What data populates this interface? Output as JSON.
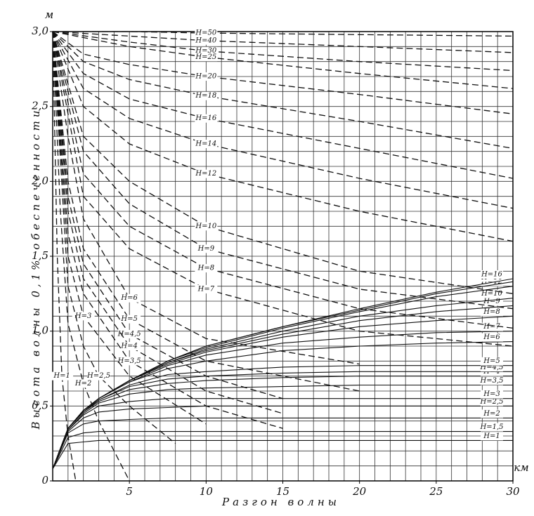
{
  "chart_data": {
    "type": "line",
    "x_label": "Разгон волны",
    "y_label": "Высота волны 0,1% обеспеченности",
    "x_unit": "км",
    "y_unit": "м",
    "xlim": [
      0,
      30
    ],
    "ylim": [
      0,
      3.0
    ],
    "xticks": [
      5,
      10,
      15,
      20,
      25,
      30
    ],
    "yticks": [
      {
        "value": 0,
        "label": "0"
      },
      {
        "value": 0.5,
        "label": "0,5"
      },
      {
        "value": 1.0,
        "label": "1,0"
      },
      {
        "value": 1.5,
        "label": "1,5"
      },
      {
        "value": 2.0,
        "label": "2,0"
      },
      {
        "value": 2.5,
        "label": "2,5"
      },
      {
        "value": 3.0,
        "label": "3,0"
      }
    ],
    "grid": true,
    "x_grid_step": 1,
    "y_grid_step": 0.1,
    "series": [
      {
        "name": "H=1",
        "color": "#111",
        "style": "solid",
        "x": [
          0,
          1,
          2,
          3,
          5,
          7.5,
          10,
          15,
          20,
          25,
          30
        ],
        "values": [
          0.08,
          0.25,
          0.26,
          0.27,
          0.27,
          0.27,
          0.27,
          0.27,
          0.27,
          0.27,
          0.27
        ]
      },
      {
        "name": "H=1,5",
        "color": "#111",
        "style": "solid",
        "x": [
          0,
          1,
          2,
          3,
          5,
          7.5,
          10,
          15,
          20,
          25,
          30
        ],
        "values": [
          0.08,
          0.29,
          0.32,
          0.33,
          0.33,
          0.33,
          0.33,
          0.33,
          0.33,
          0.33,
          0.33
        ]
      },
      {
        "name": "H=2",
        "color": "#111",
        "style": "solid",
        "x": [
          0,
          1,
          2,
          3,
          5,
          7.5,
          10,
          15,
          20,
          25,
          30
        ],
        "values": [
          0.08,
          0.32,
          0.38,
          0.4,
          0.41,
          0.42,
          0.42,
          0.42,
          0.42,
          0.42,
          0.42
        ]
      },
      {
        "name": "H=2,5",
        "color": "#111",
        "style": "solid",
        "x": [
          0,
          1,
          2,
          3,
          5,
          7.5,
          10,
          15,
          20,
          25,
          30
        ],
        "values": [
          0.08,
          0.33,
          0.42,
          0.46,
          0.48,
          0.49,
          0.5,
          0.5,
          0.5,
          0.5,
          0.5
        ]
      },
      {
        "name": "H=3",
        "color": "#111",
        "style": "solid",
        "x": [
          0,
          1,
          2,
          3,
          5,
          7.5,
          10,
          15,
          20,
          25,
          30
        ],
        "values": [
          0.08,
          0.34,
          0.44,
          0.5,
          0.53,
          0.55,
          0.55,
          0.55,
          0.55,
          0.55,
          0.55
        ]
      },
      {
        "name": "H=3,5",
        "color": "#111",
        "style": "solid",
        "x": [
          0,
          1,
          2,
          3,
          5,
          7.5,
          10,
          15,
          20,
          25,
          30
        ],
        "values": [
          0.08,
          0.34,
          0.45,
          0.52,
          0.58,
          0.61,
          0.62,
          0.63,
          0.64,
          0.64,
          0.64
        ]
      },
      {
        "name": "H=4",
        "color": "#111",
        "style": "solid",
        "x": [
          0,
          1,
          2,
          3,
          5,
          7.5,
          10,
          15,
          20,
          25,
          30
        ],
        "values": [
          0.08,
          0.35,
          0.46,
          0.53,
          0.61,
          0.65,
          0.67,
          0.69,
          0.7,
          0.7,
          0.7
        ]
      },
      {
        "name": "H=4,5",
        "color": "#111",
        "style": "solid",
        "x": [
          0,
          1,
          2,
          3,
          5,
          7.5,
          10,
          15,
          20,
          25,
          30
        ],
        "values": [
          0.08,
          0.35,
          0.46,
          0.54,
          0.63,
          0.68,
          0.7,
          0.72,
          0.73,
          0.73,
          0.73
        ]
      },
      {
        "name": "H=5",
        "color": "#111",
        "style": "solid",
        "x": [
          0,
          1,
          2,
          3,
          5,
          7.5,
          10,
          15,
          20,
          25,
          30
        ],
        "values": [
          0.08,
          0.35,
          0.47,
          0.54,
          0.64,
          0.71,
          0.73,
          0.76,
          0.77,
          0.77,
          0.77
        ]
      },
      {
        "name": "H=6",
        "color": "#111",
        "style": "solid",
        "x": [
          0,
          1,
          2,
          3,
          5,
          7.5,
          10,
          15,
          20,
          25,
          30
        ],
        "values": [
          0.08,
          0.35,
          0.47,
          0.55,
          0.66,
          0.75,
          0.8,
          0.87,
          0.9,
          0.92,
          0.93
        ]
      },
      {
        "name": "H=7",
        "color": "#111",
        "style": "solid",
        "x": [
          0,
          1,
          2,
          3,
          5,
          7.5,
          10,
          15,
          20,
          25,
          30
        ],
        "values": [
          0.08,
          0.35,
          0.47,
          0.55,
          0.66,
          0.77,
          0.84,
          0.92,
          0.96,
          0.99,
          1.0
        ]
      },
      {
        "name": "H=8",
        "color": "#111",
        "style": "solid",
        "x": [
          0,
          1,
          2,
          3,
          5,
          7.5,
          10,
          15,
          20,
          25,
          30
        ],
        "values": [
          0.08,
          0.35,
          0.47,
          0.55,
          0.67,
          0.78,
          0.86,
          0.96,
          1.03,
          1.07,
          1.1
        ]
      },
      {
        "name": "H=9",
        "color": "#111",
        "style": "solid",
        "x": [
          0,
          1,
          2,
          3,
          5,
          7.5,
          10,
          15,
          20,
          25,
          30
        ],
        "values": [
          0.08,
          0.35,
          0.47,
          0.55,
          0.67,
          0.79,
          0.87,
          0.98,
          1.07,
          1.13,
          1.17
        ]
      },
      {
        "name": "H=10",
        "color": "#111",
        "style": "solid",
        "x": [
          0,
          1,
          2,
          3,
          5,
          7.5,
          10,
          15,
          20,
          25,
          30
        ],
        "values": [
          0.08,
          0.35,
          0.47,
          0.55,
          0.67,
          0.79,
          0.88,
          1.0,
          1.1,
          1.17,
          1.22
        ]
      },
      {
        "name": "H=12",
        "color": "#111",
        "style": "solid",
        "x": [
          0,
          1,
          2,
          3,
          5,
          7.5,
          10,
          15,
          20,
          25,
          30
        ],
        "values": [
          0.08,
          0.35,
          0.47,
          0.55,
          0.67,
          0.8,
          0.89,
          1.02,
          1.13,
          1.23,
          1.3
        ]
      },
      {
        "name": "H=14",
        "color": "#111",
        "style": "solid",
        "x": [
          0,
          1,
          2,
          3,
          5,
          7.5,
          10,
          15,
          20,
          25,
          30
        ],
        "values": [
          0.08,
          0.35,
          0.47,
          0.55,
          0.67,
          0.8,
          0.9,
          1.03,
          1.14,
          1.25,
          1.33
        ]
      },
      {
        "name": "H=16",
        "color": "#111",
        "style": "solid",
        "x": [
          0,
          1,
          2,
          3,
          5,
          7.5,
          10,
          15,
          20,
          25,
          30
        ],
        "values": [
          0.08,
          0.35,
          0.47,
          0.55,
          0.67,
          0.8,
          0.9,
          1.03,
          1.15,
          1.26,
          1.35
        ]
      },
      {
        "name": "H=50",
        "color": "#111",
        "style": "dashed",
        "x": [
          0,
          5,
          10,
          20,
          30
        ],
        "values": [
          3.0,
          3.0,
          2.99,
          2.98,
          2.97
        ]
      },
      {
        "name": "H=40",
        "color": "#111",
        "style": "dashed",
        "x": [
          0,
          5,
          10,
          20,
          30
        ],
        "values": [
          3.0,
          2.97,
          2.94,
          2.9,
          2.86
        ]
      },
      {
        "name": "H=30",
        "color": "#111",
        "style": "dashed",
        "x": [
          0,
          5,
          10,
          20,
          30
        ],
        "values": [
          3.0,
          2.93,
          2.87,
          2.8,
          2.74
        ]
      },
      {
        "name": "H=25",
        "color": "#111",
        "style": "dashed",
        "x": [
          0,
          5,
          10,
          20,
          30
        ],
        "values": [
          3.0,
          2.9,
          2.83,
          2.72,
          2.62
        ]
      },
      {
        "name": "H=20",
        "color": "#111",
        "style": "dashed",
        "x": [
          0,
          2,
          5,
          10,
          20,
          30
        ],
        "values": [
          3.0,
          2.85,
          2.78,
          2.7,
          2.58,
          2.45
        ]
      },
      {
        "name": "H=18",
        "color": "#111",
        "style": "dashed",
        "x": [
          0,
          2,
          5,
          10,
          20,
          30
        ],
        "values": [
          3.0,
          2.8,
          2.68,
          2.57,
          2.4,
          2.22
        ]
      },
      {
        "name": "H=16",
        "color": "#111",
        "style": "dashed",
        "x": [
          0,
          2,
          5,
          10,
          20,
          30
        ],
        "values": [
          3.0,
          2.72,
          2.55,
          2.42,
          2.22,
          2.02
        ]
      },
      {
        "name": "H=14",
        "color": "#111",
        "style": "dashed",
        "x": [
          0,
          2,
          5,
          10,
          20,
          30
        ],
        "values": [
          3.0,
          2.62,
          2.42,
          2.25,
          2.02,
          1.82
        ]
      },
      {
        "name": "H=12",
        "color": "#111",
        "style": "dashed",
        "x": [
          0,
          2,
          5,
          10,
          20,
          30
        ],
        "values": [
          3.0,
          2.5,
          2.25,
          2.05,
          1.8,
          1.6
        ]
      },
      {
        "name": "H=10",
        "color": "#111",
        "style": "dashed",
        "x": [
          0,
          2,
          5,
          10,
          20,
          30
        ],
        "values": [
          3.0,
          2.3,
          2.0,
          1.7,
          1.4,
          1.25
        ]
      },
      {
        "name": "H=9",
        "color": "#111",
        "style": "dashed",
        "x": [
          0,
          2,
          5,
          10,
          20,
          30
        ],
        "values": [
          3.0,
          2.2,
          1.85,
          1.55,
          1.28,
          1.15
        ]
      },
      {
        "name": "H=8",
        "color": "#111",
        "style": "dashed",
        "x": [
          0,
          2,
          5,
          10,
          20,
          30
        ],
        "values": [
          3.0,
          2.05,
          1.7,
          1.42,
          1.15,
          1.02
        ]
      },
      {
        "name": "H=7",
        "color": "#111",
        "style": "dashed",
        "x": [
          0,
          2,
          5,
          10,
          20,
          30
        ],
        "values": [
          3.0,
          1.9,
          1.55,
          1.28,
          1.0,
          0.9
        ]
      },
      {
        "name": "H=6",
        "color": "#111",
        "style": "dashed",
        "x": [
          0,
          1,
          2,
          5,
          10,
          20
        ],
        "values": [
          3.0,
          2.3,
          1.75,
          1.22,
          0.95,
          0.78
        ]
      },
      {
        "name": "H=5",
        "color": "#111",
        "style": "dashed",
        "x": [
          0,
          1,
          2,
          5,
          10,
          20
        ],
        "values": [
          3.0,
          2.0,
          1.55,
          1.08,
          0.8,
          0.6
        ]
      },
      {
        "name": "H=4,5",
        "color": "#111",
        "style": "dashed",
        "x": [
          0,
          1,
          2,
          5,
          10,
          15
        ],
        "values": [
          3.0,
          1.9,
          1.45,
          0.98,
          0.7,
          0.55
        ]
      },
      {
        "name": "H=4",
        "color": "#111",
        "style": "dashed",
        "x": [
          0,
          1,
          2,
          5,
          10,
          15
        ],
        "values": [
          3.0,
          1.8,
          1.35,
          0.9,
          0.6,
          0.45
        ]
      },
      {
        "name": "H=3,5",
        "color": "#111",
        "style": "dashed",
        "x": [
          0,
          1,
          2,
          5,
          10,
          15
        ],
        "values": [
          3.0,
          1.65,
          1.25,
          0.8,
          0.5,
          0.35
        ]
      },
      {
        "name": "H=3",
        "color": "#111",
        "style": "dashed",
        "x": [
          0,
          1,
          2,
          5,
          10
        ],
        "values": [
          3.0,
          1.5,
          1.1,
          0.7,
          0.38
        ]
      },
      {
        "name": "H=2,5",
        "color": "#111",
        "style": "dashed",
        "x": [
          0,
          1,
          2,
          3,
          5,
          8
        ],
        "values": [
          3.0,
          1.3,
          0.9,
          0.7,
          0.5,
          0.25
        ]
      },
      {
        "name": "H=2",
        "color": "#111",
        "style": "dashed",
        "x": [
          0,
          0.5,
          1,
          2,
          3,
          5
        ],
        "values": [
          3.0,
          1.8,
          1.05,
          0.65,
          0.4,
          0
        ]
      },
      {
        "name": "H=1",
        "color": "#111",
        "style": "dashed",
        "x": [
          0,
          0.3,
          0.6,
          1,
          1.5
        ],
        "values": [
          3.0,
          1.5,
          0.7,
          0.3,
          0
        ]
      }
    ]
  }
}
